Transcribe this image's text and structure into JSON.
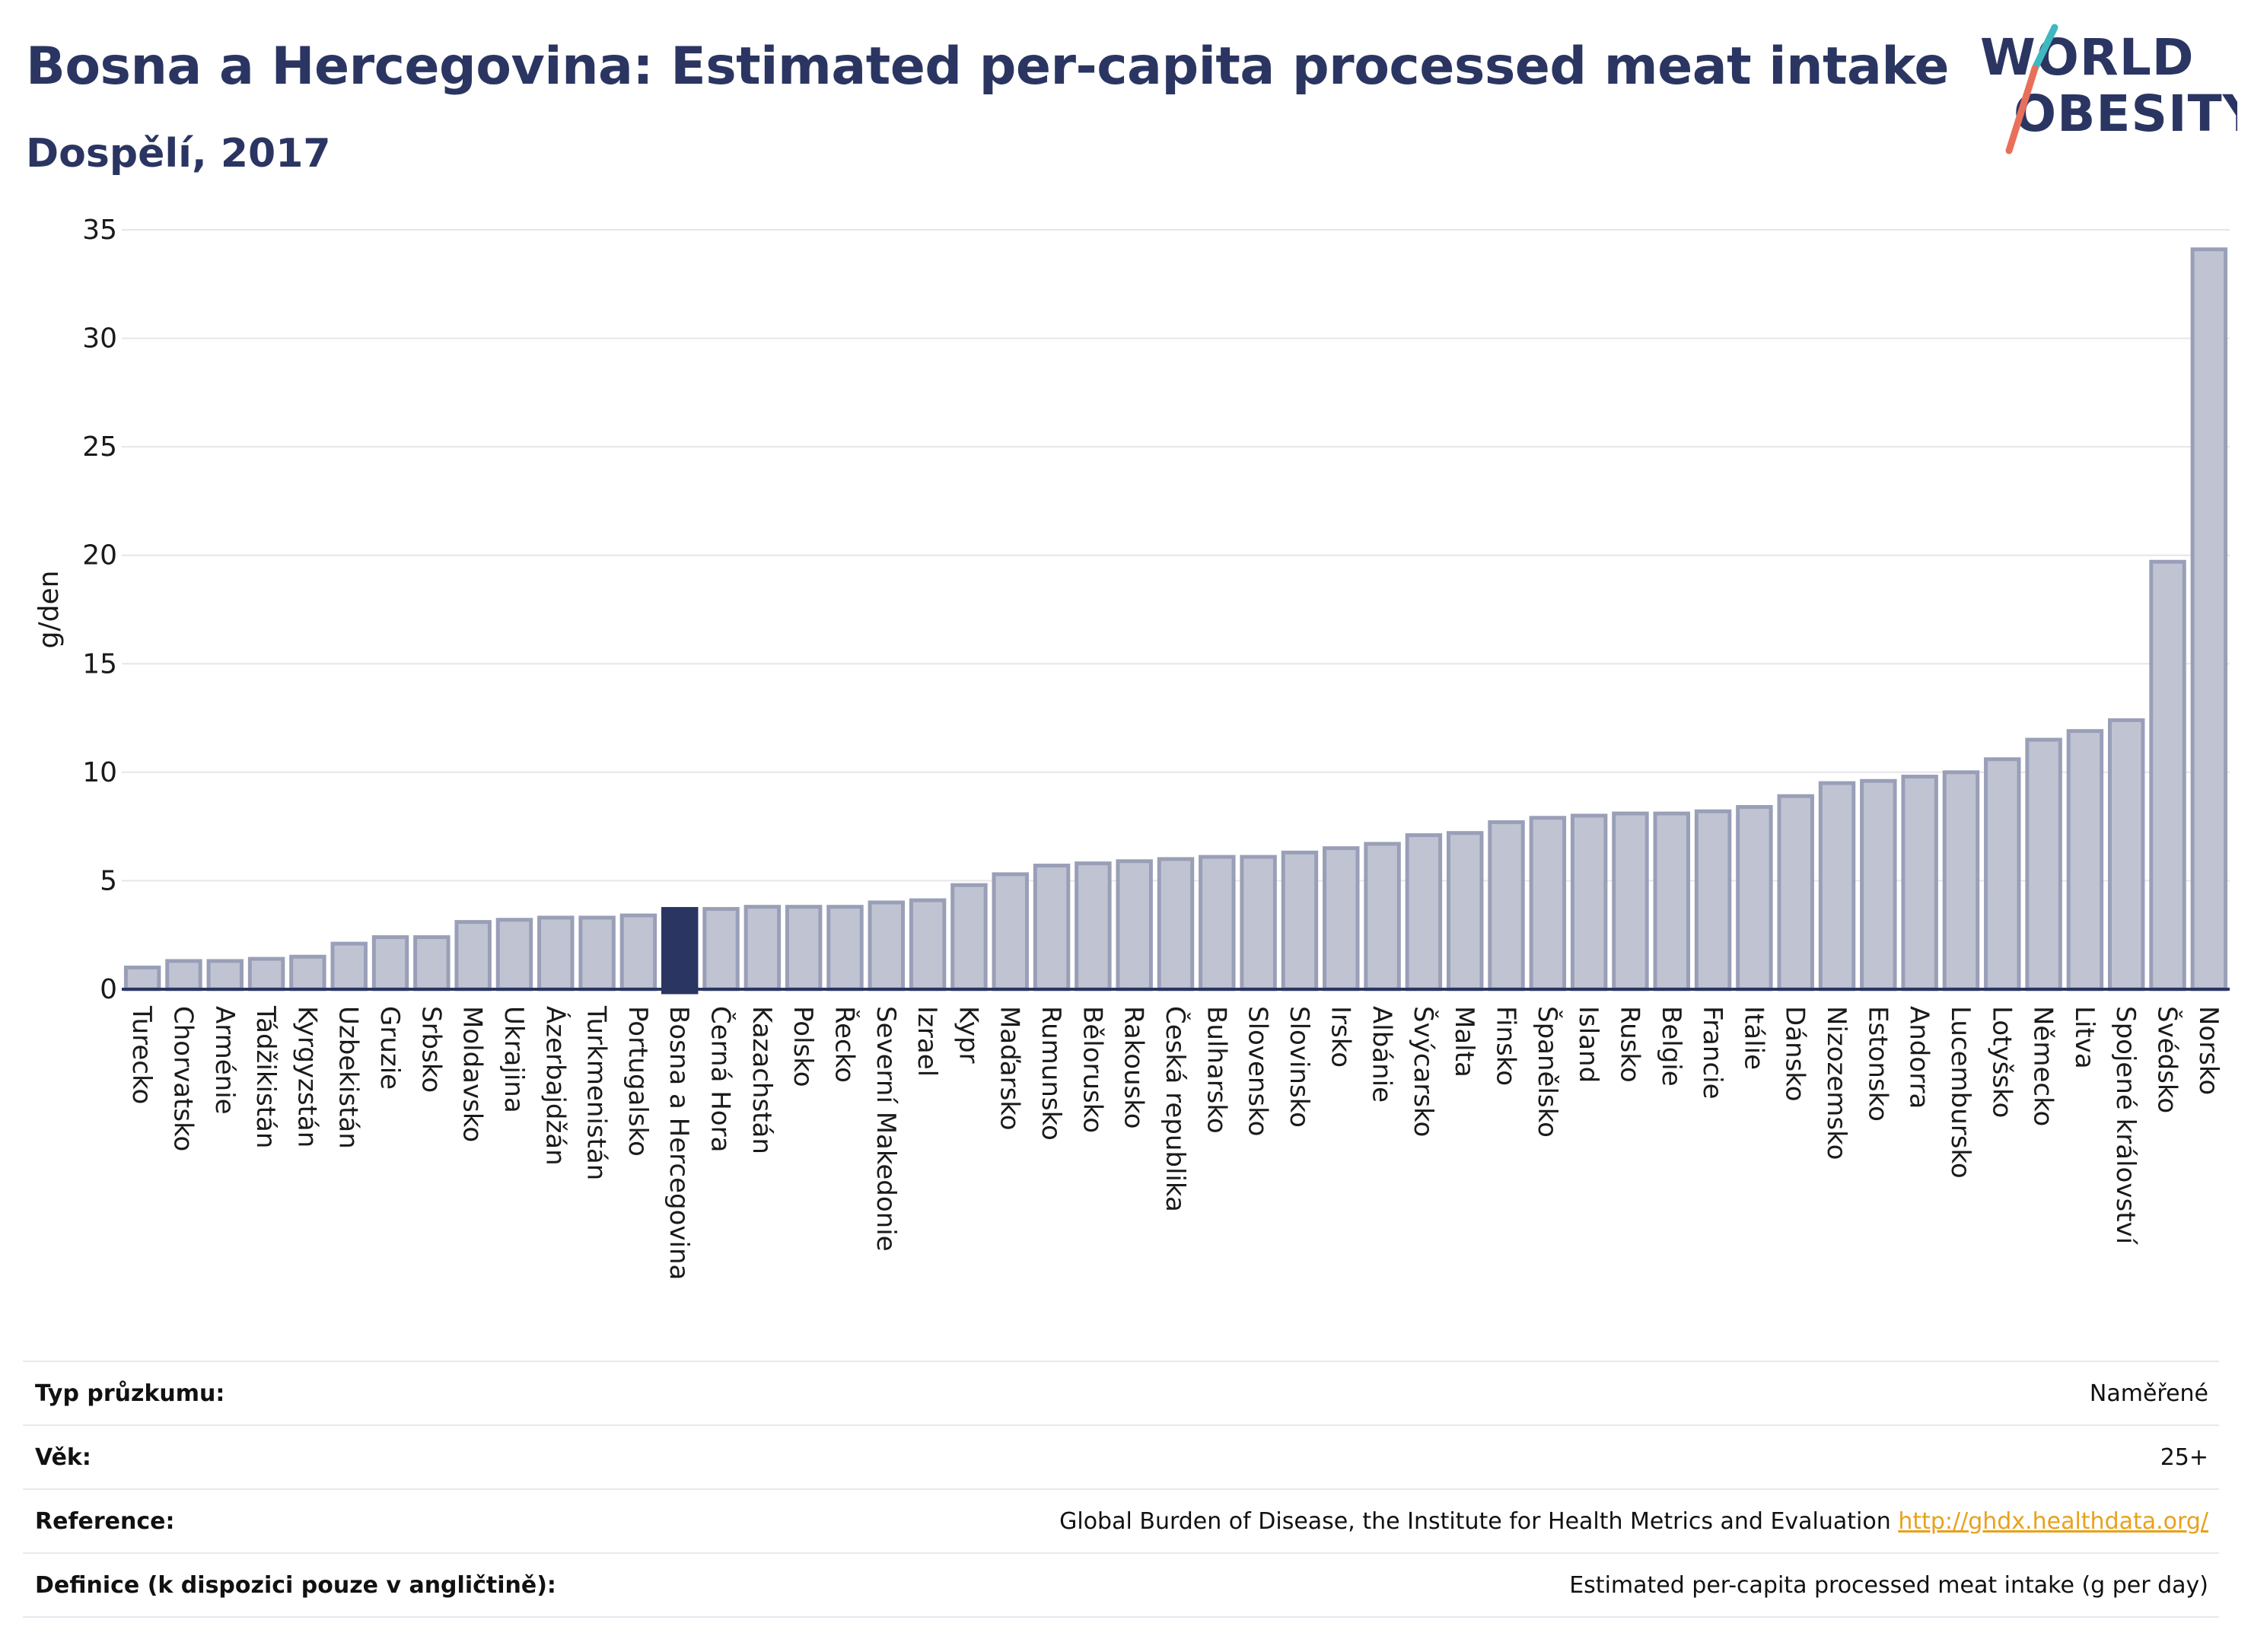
{
  "header": {
    "title": "Bosna a Hercegovina: Estimated per-capita processed meat intake",
    "subtitle": "Dospělí, 2017"
  },
  "logo": {
    "line1": "WORLD",
    "line2": "OBESITY"
  },
  "colors": {
    "title": "#2b3562",
    "bar": "#c0c4d2",
    "bar_stroke": "#9a9fb8",
    "highlight": "#2b3562",
    "grid": "#e6e6ea",
    "link": "#e8a11c",
    "logo_teal": "#3fb8c0",
    "logo_coral": "#e8705a"
  },
  "chart_data": {
    "type": "bar",
    "title": "Bosna a Hercegovina: Estimated per-capita processed meat intake",
    "subtitle": "Dospělí, 2017",
    "xlabel": "",
    "ylabel": "g/den",
    "ylim": [
      0,
      35
    ],
    "yticks": [
      0,
      5,
      10,
      15,
      20,
      25,
      30,
      35
    ],
    "grid": true,
    "highlight": "Bosna a Hercegovina",
    "categories": [
      "Turecko",
      "Chorvatsko",
      "Arménie",
      "Tádžikistán",
      "Kyrgyzstán",
      "Uzbekistán",
      "Gruzie",
      "Srbsko",
      "Moldavsko",
      "Ukrajina",
      "Ázerbajdžán",
      "Turkmenistán",
      "Portugalsko",
      "Bosna a Hercegovina",
      "Černá Hora",
      "Kazachstán",
      "Polsko",
      "Řecko",
      "Severní Makedonie",
      "Izrael",
      "Kypr",
      "Maďarsko",
      "Rumunsko",
      "Bělorusko",
      "Rakousko",
      "Česká republika",
      "Bulharsko",
      "Slovensko",
      "Slovinsko",
      "Irsko",
      "Albánie",
      "Švýcarsko",
      "Malta",
      "Finsko",
      "Španělsko",
      "Island",
      "Rusko",
      "Belgie",
      "Francie",
      "Itálie",
      "Dánsko",
      "Nizozemsko",
      "Estonsko",
      "Andorra",
      "Lucembursko",
      "Lotyšsko",
      "Německo",
      "Litva",
      "Spojené království",
      "Švédsko",
      "Norsko"
    ],
    "values": [
      1.0,
      1.3,
      1.3,
      1.4,
      1.5,
      2.1,
      2.4,
      2.4,
      3.1,
      3.2,
      3.3,
      3.3,
      3.4,
      3.7,
      3.7,
      3.8,
      3.8,
      3.8,
      4.0,
      4.1,
      4.8,
      5.3,
      5.7,
      5.8,
      5.9,
      6.0,
      6.1,
      6.1,
      6.3,
      6.5,
      6.7,
      7.1,
      7.2,
      7.7,
      7.9,
      8.0,
      8.1,
      8.1,
      8.2,
      8.4,
      8.9,
      9.5,
      9.6,
      9.8,
      10.0,
      10.6,
      11.5,
      11.9,
      12.4,
      19.7,
      34.1
    ]
  },
  "info_table": [
    {
      "label": "Typ průzkumu:",
      "value": "Naměřené"
    },
    {
      "label": "Věk:",
      "value": "25+"
    },
    {
      "label": "Reference:",
      "value": "Global Burden of Disease, the Institute for Health Metrics and Evaluation",
      "link": "http://ghdx.healthdata.org/"
    },
    {
      "label": "Definice (k dispozici pouze v angličtině):",
      "value": "Estimated per-capita processed meat intake (g per day)"
    }
  ]
}
